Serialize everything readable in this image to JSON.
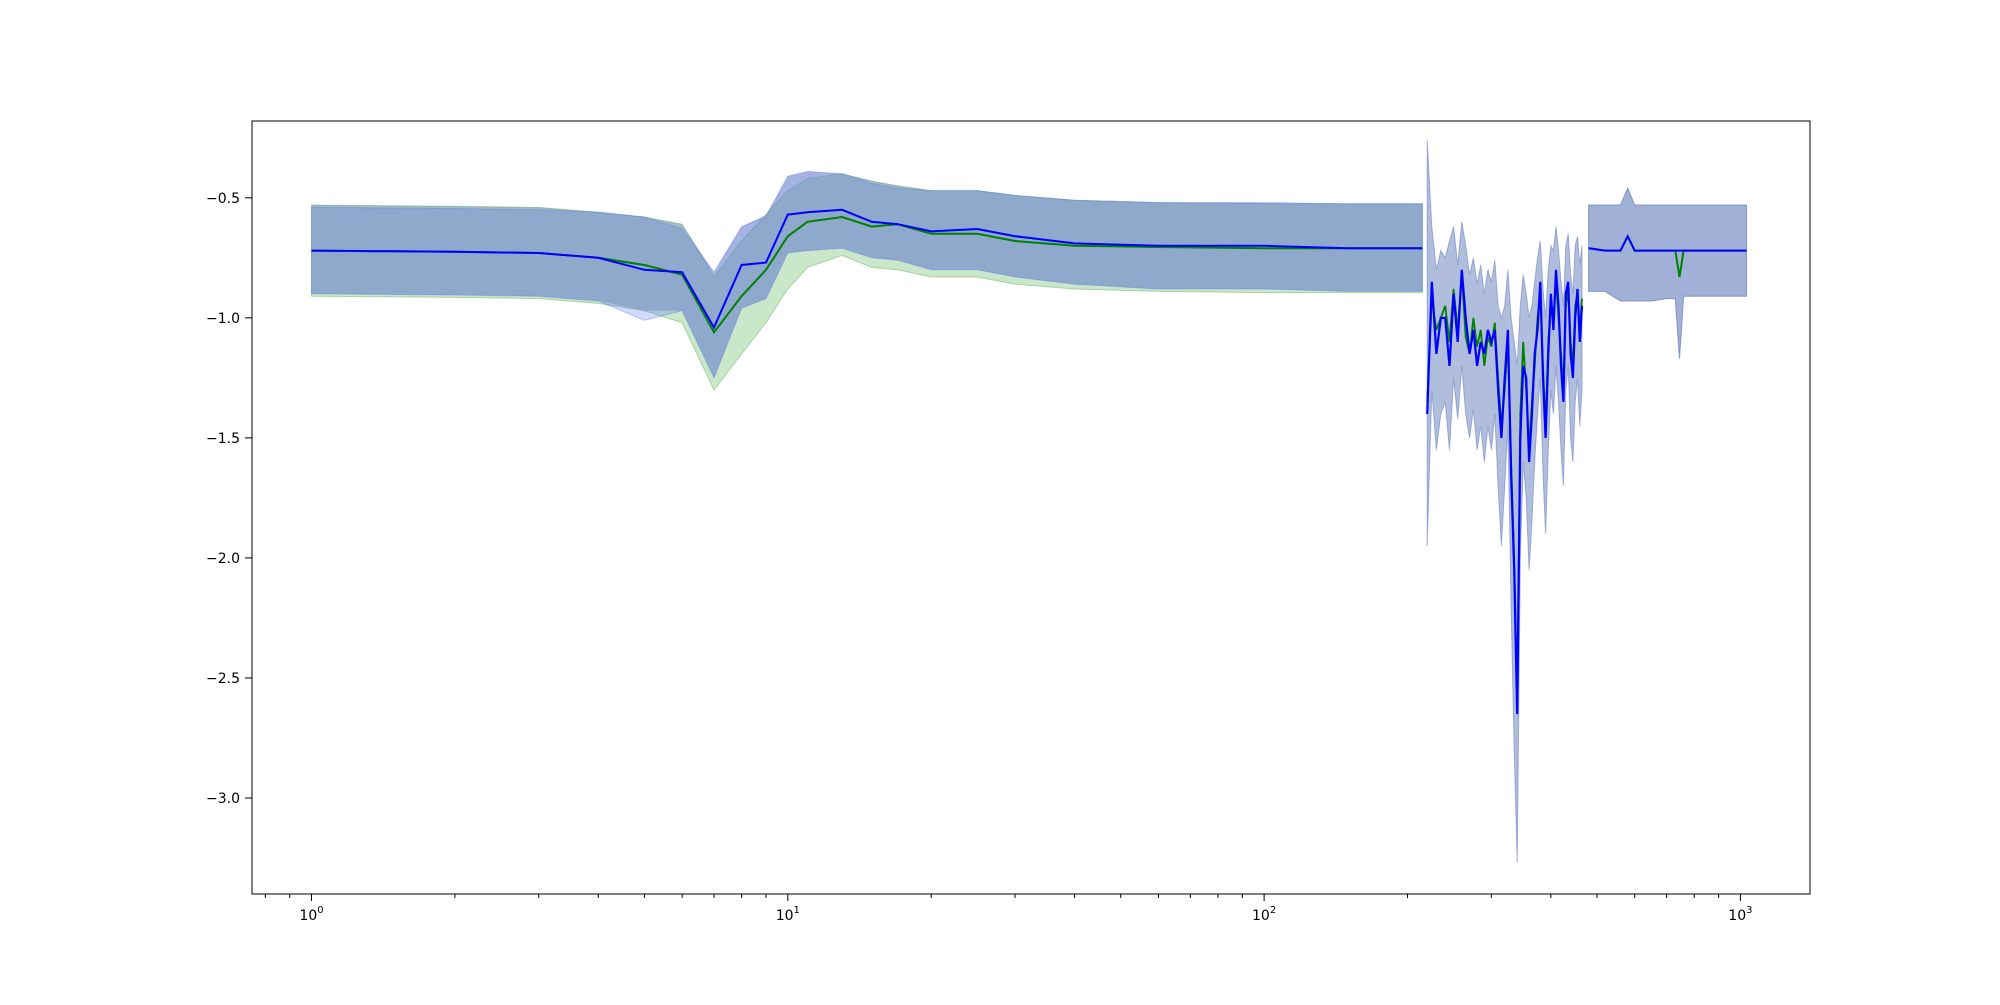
{
  "chart_data": {
    "type": "line",
    "title": "",
    "xlabel": "",
    "ylabel": "",
    "xscale": "log",
    "xlim": [
      0.75,
      1400
    ],
    "ylim": [
      -3.4,
      -0.18
    ],
    "grid": false,
    "legend": "none",
    "x_ticks": [
      {
        "value": 1,
        "base": "10",
        "exp": "0"
      },
      {
        "value": 10,
        "base": "10",
        "exp": "1"
      },
      {
        "value": 100,
        "base": "10",
        "exp": "2"
      },
      {
        "value": 1000,
        "base": "10",
        "exp": "3"
      }
    ],
    "y_ticks": [
      {
        "value": -0.5,
        "label": "−0.5"
      },
      {
        "value": -1.0,
        "label": "−1.0"
      },
      {
        "value": -1.5,
        "label": "−1.5"
      },
      {
        "value": -2.0,
        "label": "−2.0"
      },
      {
        "value": -2.5,
        "label": "−2.5"
      },
      {
        "value": -3.0,
        "label": "−3.0"
      }
    ],
    "series": [
      {
        "color": "#008000",
        "band_color": "#2ca02c",
        "x": [
          1,
          2,
          3,
          4,
          5,
          6,
          7,
          8,
          9,
          10,
          11,
          13,
          15,
          17,
          20,
          25,
          30,
          40,
          60,
          100,
          150,
          200,
          215
        ],
        "y": [
          -0.72,
          -0.725,
          -0.73,
          -0.75,
          -0.78,
          -0.82,
          -1.06,
          -0.91,
          -0.8,
          -0.66,
          -0.6,
          -0.58,
          -0.62,
          -0.61,
          -0.65,
          -0.65,
          -0.68,
          -0.7,
          -0.705,
          -0.71,
          -0.71,
          -0.71,
          -0.71
        ],
        "upper": [
          -0.53,
          -0.535,
          -0.54,
          -0.56,
          -0.58,
          -0.61,
          -0.83,
          -0.68,
          -0.57,
          -0.47,
          -0.42,
          -0.4,
          -0.43,
          -0.45,
          -0.47,
          -0.47,
          -0.49,
          -0.51,
          -0.52,
          -0.525,
          -0.525,
          -0.525,
          -0.525
        ],
        "lower": [
          -0.91,
          -0.915,
          -0.92,
          -0.94,
          -0.97,
          -1.02,
          -1.3,
          -1.15,
          -1.02,
          -0.88,
          -0.79,
          -0.74,
          -0.79,
          -0.8,
          -0.83,
          -0.83,
          -0.86,
          -0.88,
          -0.89,
          -0.895,
          -0.895,
          -0.895,
          -0.895
        ]
      },
      {
        "color": "#0000ff",
        "band_color": "#4a66ff",
        "x": [
          1,
          2,
          3,
          4,
          5,
          6,
          7,
          8,
          9,
          10,
          11,
          13,
          15,
          17,
          20,
          25,
          30,
          40,
          60,
          100,
          150,
          200,
          215
        ],
        "y": [
          -0.72,
          -0.725,
          -0.73,
          -0.75,
          -0.8,
          -0.81,
          -1.04,
          -0.78,
          -0.77,
          -0.57,
          -0.56,
          -0.55,
          -0.6,
          -0.61,
          -0.64,
          -0.63,
          -0.66,
          -0.69,
          -0.7,
          -0.7,
          -0.71,
          -0.71,
          -0.71
        ],
        "upper": [
          -0.54,
          -0.545,
          -0.55,
          -0.56,
          -0.58,
          -0.63,
          -0.81,
          -0.62,
          -0.58,
          -0.41,
          -0.39,
          -0.4,
          -0.44,
          -0.46,
          -0.47,
          -0.47,
          -0.49,
          -0.51,
          -0.52,
          -0.52,
          -0.525,
          -0.525,
          -0.525
        ],
        "lower": [
          -0.9,
          -0.905,
          -0.91,
          -0.93,
          -1.01,
          -0.97,
          -1.25,
          -0.96,
          -0.92,
          -0.73,
          -0.72,
          -0.71,
          -0.75,
          -0.76,
          -0.8,
          -0.8,
          -0.83,
          -0.86,
          -0.88,
          -0.88,
          -0.89,
          -0.89,
          -0.89
        ]
      }
    ],
    "noisy_region": {
      "x": [
        220,
        225,
        230,
        235,
        240,
        245,
        250,
        255,
        260,
        265,
        270,
        275,
        280,
        285,
        290,
        295,
        300,
        305,
        310,
        315,
        320,
        325,
        330,
        335,
        340,
        345,
        350,
        355,
        360,
        365,
        370,
        375,
        380,
        385,
        390,
        395,
        400,
        405,
        410,
        415,
        420,
        425,
        430,
        435,
        440,
        445,
        450,
        455,
        460,
        465
      ],
      "green_y": [
        -1.35,
        -0.92,
        -1.05,
        -1.0,
        -0.95,
        -1.1,
        -0.88,
        -1.05,
        -0.82,
        -1.08,
        -1.15,
        -1.0,
        -1.12,
        -1.05,
        -1.2,
        -1.08,
        -1.12,
        -1.02,
        -1.25,
        -1.45,
        -1.3,
        -1.1,
        -1.6,
        -2.0,
        -2.6,
        -1.4,
        -1.1,
        -1.3,
        -1.55,
        -1.35,
        -1.2,
        -1.0,
        -0.9,
        -1.2,
        -1.45,
        -1.1,
        -0.95,
        -1.0,
        -0.85,
        -1.0,
        -1.15,
        -1.3,
        -0.95,
        -0.88,
        -1.1,
        -1.2,
        -0.95,
        -0.9,
        -1.05,
        -0.92
      ],
      "blue_y": [
        -1.4,
        -0.85,
        -1.15,
        -1.0,
        -1.0,
        -1.2,
        -0.9,
        -1.1,
        -0.8,
        -1.0,
        -1.15,
        -1.05,
        -1.2,
        -1.1,
        -1.15,
        -1.05,
        -1.1,
        -1.05,
        -1.3,
        -1.5,
        -1.25,
        -1.05,
        -1.65,
        -2.05,
        -2.65,
        -1.5,
        -1.2,
        -1.25,
        -1.6,
        -1.4,
        -1.15,
        -1.05,
        -0.85,
        -1.25,
        -1.5,
        -1.15,
        -0.9,
        -1.05,
        -0.8,
        -0.95,
        -1.2,
        -1.35,
        -0.9,
        -0.85,
        -1.15,
        -1.25,
        -1.0,
        -0.88,
        -1.1,
        -0.95
      ],
      "upper": [
        -0.26,
        -0.62,
        -0.8,
        -0.72,
        -0.75,
        -0.68,
        -0.62,
        -0.78,
        -0.6,
        -0.7,
        -0.82,
        -0.75,
        -0.86,
        -0.78,
        -0.9,
        -0.8,
        -0.85,
        -0.76,
        -0.95,
        -1.0,
        -0.95,
        -0.8,
        -1.0,
        -1.1,
        -1.2,
        -0.95,
        -0.82,
        -0.9,
        -1.0,
        -0.95,
        -0.85,
        -0.75,
        -0.68,
        -0.88,
        -1.0,
        -0.8,
        -0.7,
        -0.72,
        -0.62,
        -0.72,
        -0.85,
        -0.95,
        -0.7,
        -0.65,
        -0.82,
        -0.9,
        -0.7,
        -0.66,
        -0.78,
        -0.7
      ],
      "lower": [
        -1.95,
        -1.3,
        -1.55,
        -1.4,
        -1.35,
        -1.55,
        -1.25,
        -1.42,
        -1.2,
        -1.4,
        -1.5,
        -1.38,
        -1.55,
        -1.45,
        -1.6,
        -1.45,
        -1.55,
        -1.4,
        -1.7,
        -1.95,
        -1.7,
        -1.45,
        -2.2,
        -2.8,
        -3.27,
        -2.0,
        -1.6,
        -1.75,
        -2.05,
        -1.85,
        -1.6,
        -1.4,
        -1.25,
        -1.65,
        -1.9,
        -1.55,
        -1.3,
        -1.4,
        -1.2,
        -1.35,
        -1.55,
        -1.7,
        -1.3,
        -1.2,
        -1.5,
        -1.6,
        -1.35,
        -1.25,
        -1.45,
        -1.3
      ]
    },
    "tail_region": {
      "x": [
        480,
        520,
        560,
        580,
        600,
        650,
        700,
        730,
        745,
        760,
        800,
        900,
        1000,
        1030
      ],
      "green_y": [
        -0.71,
        -0.72,
        -0.72,
        -0.66,
        -0.72,
        -0.72,
        -0.72,
        -0.72,
        -0.83,
        -0.72,
        -0.72,
        -0.72,
        -0.72,
        -0.72
      ],
      "blue_y": [
        -0.71,
        -0.72,
        -0.72,
        -0.66,
        -0.72,
        -0.72,
        -0.72,
        -0.72,
        -0.72,
        -0.72,
        -0.72,
        -0.72,
        -0.72,
        -0.72
      ],
      "upper": [
        -0.53,
        -0.53,
        -0.53,
        -0.46,
        -0.53,
        -0.53,
        -0.53,
        -0.53,
        -0.53,
        -0.53,
        -0.53,
        -0.53,
        -0.53,
        -0.53
      ],
      "lower": [
        -0.89,
        -0.89,
        -0.93,
        -0.93,
        -0.93,
        -0.93,
        -0.92,
        -0.92,
        -1.17,
        -0.91,
        -0.91,
        -0.91,
        -0.91,
        -0.91
      ]
    }
  }
}
